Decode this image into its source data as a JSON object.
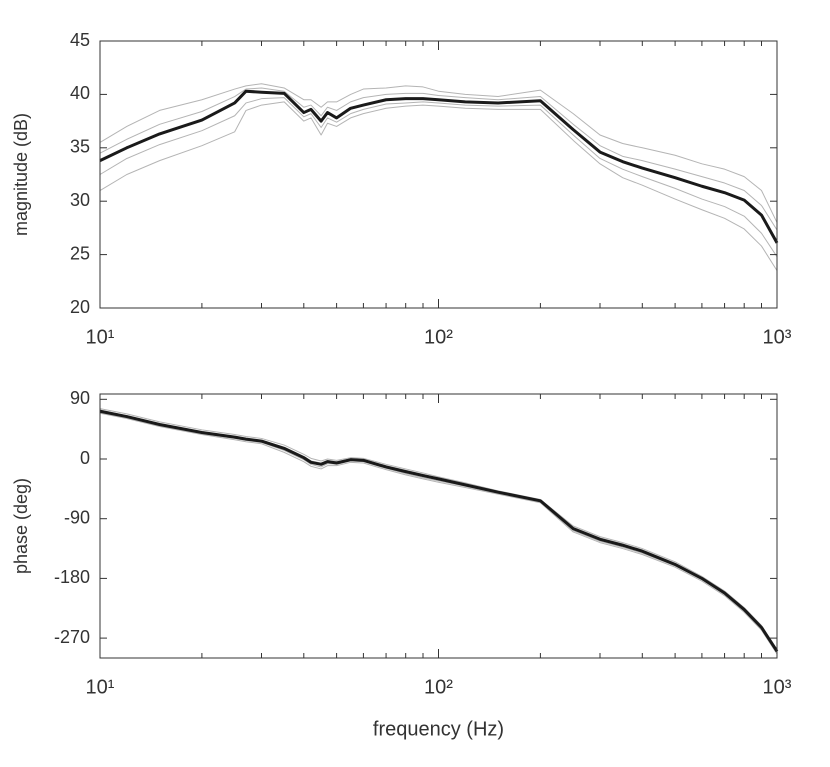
{
  "chart_data": [
    {
      "type": "line",
      "xscale": "log",
      "ylabel": "magnitude (dB)",
      "x": [
        10,
        12,
        15,
        20,
        25,
        27,
        30,
        35,
        40,
        42,
        45,
        47,
        50,
        55,
        60,
        70,
        80,
        90,
        100,
        120,
        150,
        200,
        250,
        300,
        350,
        400,
        500,
        600,
        700,
        800,
        900,
        1000
      ],
      "series": [
        {
          "color": "#b4b4b4",
          "width": 1,
          "values": [
            35.5,
            37,
            38.5,
            39.5,
            40.5,
            40.8,
            41,
            40.6,
            39.5,
            39.5,
            38.8,
            39.3,
            39.3,
            40,
            40.5,
            40.6,
            40.8,
            40.7,
            40.3,
            40,
            39.8,
            40.4,
            38.2,
            36.2,
            35.4,
            35,
            34.3,
            33.5,
            33,
            32.3,
            31,
            28
          ]
        },
        {
          "color": "#b4b4b4",
          "width": 1,
          "values": [
            34.5,
            35.8,
            37.2,
            38.4,
            39.8,
            40.5,
            40.6,
            40.3,
            38.8,
            39,
            38,
            38.8,
            38.5,
            39.3,
            39.7,
            40,
            40.1,
            40.1,
            39.9,
            39.7,
            39.5,
            39.8,
            37.2,
            35.2,
            34.2,
            33.8,
            33,
            32.3,
            31.7,
            31,
            29.6,
            27.3
          ]
        },
        {
          "color": "#b4b4b4",
          "width": 1,
          "values": [
            32.5,
            34,
            35.3,
            36.6,
            38,
            39.2,
            39.6,
            39.7,
            37.9,
            38.2,
            36.9,
            37.8,
            37.4,
            38.2,
            38.6,
            39.1,
            39.2,
            39.3,
            39.2,
            39,
            38.9,
            39,
            36.2,
            34,
            33,
            32.3,
            31.2,
            30.2,
            29.5,
            28.6,
            27,
            24.8
          ]
        },
        {
          "color": "#b4b4b4",
          "width": 1,
          "values": [
            31,
            32.5,
            33.8,
            35.2,
            36.5,
            38.5,
            39,
            39.3,
            37.5,
            37.8,
            36.2,
            37.3,
            37,
            37.8,
            38.2,
            38.7,
            38.9,
            39,
            38.9,
            38.7,
            38.6,
            38.6,
            35.7,
            33.5,
            32.2,
            31.5,
            30.2,
            29.2,
            28.4,
            27.4,
            25.8,
            23.5
          ]
        },
        {
          "color": "#1a1a1a",
          "width": 3,
          "values": [
            33.8,
            35,
            36.3,
            37.6,
            39.2,
            40.3,
            40.2,
            40.1,
            38.3,
            38.6,
            37.5,
            38.3,
            37.8,
            38.7,
            39,
            39.5,
            39.6,
            39.6,
            39.5,
            39.3,
            39.2,
            39.4,
            36.7,
            34.6,
            33.7,
            33.1,
            32.2,
            31.4,
            30.8,
            30.1,
            28.7,
            26.1
          ]
        }
      ],
      "xlim": [
        10,
        1000
      ],
      "xticks": [
        {
          "value": 10,
          "label": "10¹"
        },
        {
          "value": 100,
          "label": "10²"
        },
        {
          "value": 1000,
          "label": "10³"
        }
      ],
      "xminorticks": [
        20,
        30,
        40,
        50,
        60,
        70,
        80,
        90,
        200,
        300,
        400,
        500,
        600,
        700,
        800,
        900
      ],
      "ylim": [
        20,
        45
      ],
      "yticks": [
        20,
        25,
        30,
        35,
        40,
        45
      ]
    },
    {
      "type": "line",
      "xscale": "log",
      "ylabel": "phase (deg)",
      "xlabel": "frequency (Hz)",
      "x": [
        10,
        12,
        15,
        20,
        25,
        27,
        30,
        35,
        40,
        42,
        45,
        47,
        50,
        55,
        60,
        70,
        80,
        90,
        100,
        120,
        150,
        200,
        250,
        300,
        350,
        400,
        500,
        600,
        700,
        800,
        900,
        1000
      ],
      "series": [
        {
          "color": "#b4b4b4",
          "width": 1,
          "values": [
            76,
            68,
            56,
            44,
            37,
            34,
            31,
            21,
            7,
            1,
            -3,
            0,
            -2,
            2,
            1,
            -8,
            -15,
            -21,
            -27,
            -36,
            -48,
            -61,
            -101,
            -117,
            -126,
            -135,
            -155,
            -177,
            -199,
            -224,
            -251,
            -287
          ]
        },
        {
          "color": "#b4b4b4",
          "width": 1,
          "values": [
            74,
            65,
            53,
            41,
            34,
            31,
            28,
            18,
            4,
            -3,
            -6,
            -2,
            -4,
            0,
            -1,
            -10,
            -17,
            -23,
            -29,
            -38,
            -49,
            -62,
            -103,
            -119,
            -128,
            -137,
            -157,
            -179,
            -201,
            -226,
            -253,
            -289
          ]
        },
        {
          "color": "#b4b4b4",
          "width": 1,
          "values": [
            70,
            62,
            50,
            38,
            31,
            28,
            25,
            13,
            -1,
            -8,
            -12,
            -7,
            -8,
            -3,
            -4,
            -14,
            -22,
            -28,
            -33,
            -41,
            -52,
            -65,
            -108,
            -124,
            -133,
            -142,
            -161,
            -182,
            -204,
            -229,
            -256,
            -292
          ]
        },
        {
          "color": "#b4b4b4",
          "width": 1,
          "values": [
            69,
            61,
            49,
            37,
            29,
            26,
            23,
            10,
            -4,
            -11,
            -15,
            -10,
            -10,
            -5,
            -6,
            -16,
            -24,
            -30,
            -35,
            -43,
            -53,
            -66,
            -110,
            -126,
            -135,
            -144,
            -163,
            -184,
            -206,
            -231,
            -258,
            -294
          ]
        },
        {
          "color": "#1a1a1a",
          "width": 3,
          "values": [
            72,
            64,
            52,
            40,
            33,
            30,
            27,
            16,
            2,
            -5,
            -8,
            -4,
            -6,
            -1,
            -2,
            -12,
            -19,
            -25,
            -30,
            -39,
            -50,
            -63,
            -105,
            -121,
            -130,
            -139,
            -159,
            -180,
            -202,
            -227,
            -254,
            -290
          ]
        }
      ],
      "xlim": [
        10,
        1000
      ],
      "xticks": [
        {
          "value": 10,
          "label": "10¹"
        },
        {
          "value": 100,
          "label": "10²"
        },
        {
          "value": 1000,
          "label": "10³"
        }
      ],
      "xminorticks": [
        20,
        30,
        40,
        50,
        60,
        70,
        80,
        90,
        200,
        300,
        400,
        500,
        600,
        700,
        800,
        900
      ],
      "ylim": [
        -300,
        98
      ],
      "yticks": [
        -270,
        -180,
        -90,
        0,
        90
      ]
    }
  ]
}
